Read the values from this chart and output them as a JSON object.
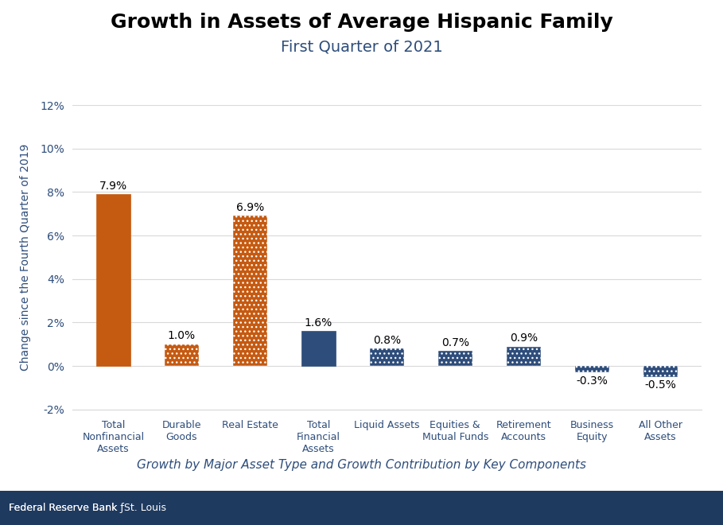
{
  "title": "Growth in Assets of Average Hispanic Family",
  "subtitle": "First Quarter of 2021",
  "xlabel_bottom": "Growth by Major Asset Type and Growth Contribution by Key Components",
  "ylabel": "Change since the Fourth Quarter of 2019",
  "categories": [
    "Total\nNonfinancial\nAssets",
    "Durable\nGoods",
    "Real Estate",
    "Total\nFinancial\nAssets",
    "Liquid Assets",
    "Equities &\nMutual Funds",
    "Retirement\nAccounts",
    "Business\nEquity",
    "All Other\nAssets"
  ],
  "values": [
    7.9,
    1.0,
    6.9,
    1.6,
    0.8,
    0.7,
    0.9,
    -0.3,
    -0.5
  ],
  "labels": [
    "7.9%",
    "1.0%",
    "6.9%",
    "1.6%",
    "0.8%",
    "0.7%",
    "0.9%",
    "-0.3%",
    "-0.5%"
  ],
  "bar_colors": [
    "#C55A11",
    "#C55A11",
    "#C55A11",
    "#2E4D7B",
    "#2E4D7B",
    "#2E4D7B",
    "#2E4D7B",
    "#2E4D7B",
    "#2E4D7B"
  ],
  "bar_hatched": [
    false,
    true,
    true,
    false,
    true,
    true,
    true,
    true,
    true
  ],
  "ylim": [
    -2,
    12
  ],
  "yticks": [
    -2,
    0,
    2,
    4,
    6,
    8,
    10,
    12
  ],
  "ytick_labels": [
    "-2%",
    "0%",
    "2%",
    "4%",
    "6%",
    "8%",
    "10%",
    "12%"
  ],
  "title_fontsize": 18,
  "subtitle_fontsize": 14,
  "subtitle_color": "#2E4D7B",
  "footer_text_regular": "Federal Reserve Bank ",
  "footer_text_italic": "of",
  "footer_text_end": "St. Louis",
  "footer_bg": "#1F3A5F",
  "footer_text_color": "#FFFFFF",
  "background_color": "#FFFFFF",
  "grid_color": "#D9D9D9",
  "label_fontsize": 10,
  "axis_label_color": "#2E4D7B",
  "tick_label_color": "#2E4D7B"
}
